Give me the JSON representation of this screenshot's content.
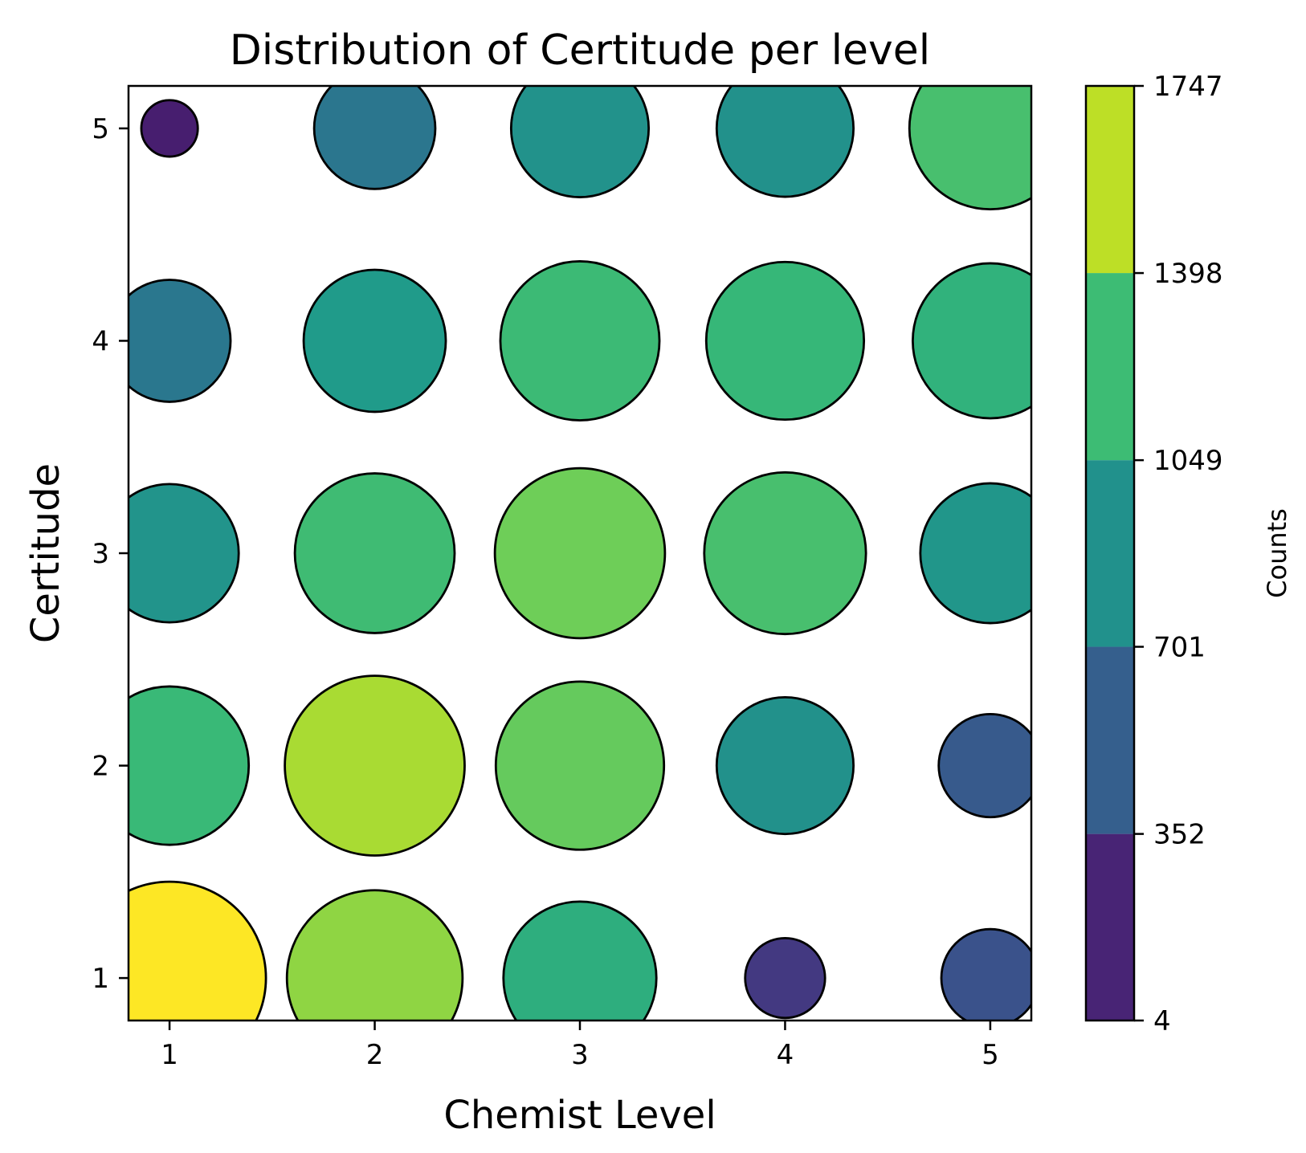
{
  "chart_data": {
    "type": "scatter",
    "title": "Distribution of Certitude per level",
    "xlabel": "Chemist Level",
    "ylabel": "Certitude",
    "xlim": [
      0.8,
      5.2
    ],
    "ylim": [
      0.8,
      5.2
    ],
    "xticks": [
      "1",
      "2",
      "3",
      "4",
      "5"
    ],
    "yticks": [
      "1",
      "2",
      "3",
      "4",
      "5"
    ],
    "size_encoding": "counts",
    "color_encoding": "counts",
    "points": [
      {
        "x": 1,
        "y": 1,
        "count": 1747
      },
      {
        "x": 1,
        "y": 2,
        "count": 1180
      },
      {
        "x": 1,
        "y": 3,
        "count": 900
      },
      {
        "x": 1,
        "y": 4,
        "count": 700
      },
      {
        "x": 1,
        "y": 5,
        "count": 150
      },
      {
        "x": 2,
        "y": 1,
        "count": 1450
      },
      {
        "x": 2,
        "y": 2,
        "count": 1520
      },
      {
        "x": 2,
        "y": 3,
        "count": 1200
      },
      {
        "x": 2,
        "y": 4,
        "count": 950
      },
      {
        "x": 2,
        "y": 5,
        "count": 690
      },
      {
        "x": 3,
        "y": 1,
        "count": 1100
      },
      {
        "x": 3,
        "y": 2,
        "count": 1330
      },
      {
        "x": 3,
        "y": 3,
        "count": 1360
      },
      {
        "x": 3,
        "y": 4,
        "count": 1190
      },
      {
        "x": 3,
        "y": 5,
        "count": 890
      },
      {
        "x": 4,
        "y": 1,
        "count": 300
      },
      {
        "x": 4,
        "y": 2,
        "count": 880
      },
      {
        "x": 4,
        "y": 3,
        "count": 1230
      },
      {
        "x": 4,
        "y": 4,
        "count": 1170
      },
      {
        "x": 4,
        "y": 5,
        "count": 880
      },
      {
        "x": 5,
        "y": 1,
        "count": 450
      },
      {
        "x": 5,
        "y": 2,
        "count": 500
      },
      {
        "x": 5,
        "y": 3,
        "count": 920
      },
      {
        "x": 5,
        "y": 4,
        "count": 1130
      },
      {
        "x": 5,
        "y": 5,
        "count": 1230
      }
    ],
    "colorbar": {
      "label": "Counts",
      "ticks": [
        "4",
        "352",
        "701",
        "1049",
        "1398",
        "1747"
      ],
      "tick_values": [
        4,
        352,
        701,
        1049,
        1398,
        1747
      ],
      "band_colors": [
        "#482475",
        "#355f8d",
        "#21918c",
        "#3dbc74",
        "#bddf26"
      ]
    },
    "colormap": [
      "#440154",
      "#482878",
      "#3e4989",
      "#31688e",
      "#26828e",
      "#1f9e89",
      "#35b779",
      "#6ece58",
      "#b5de2b",
      "#fde725"
    ]
  }
}
